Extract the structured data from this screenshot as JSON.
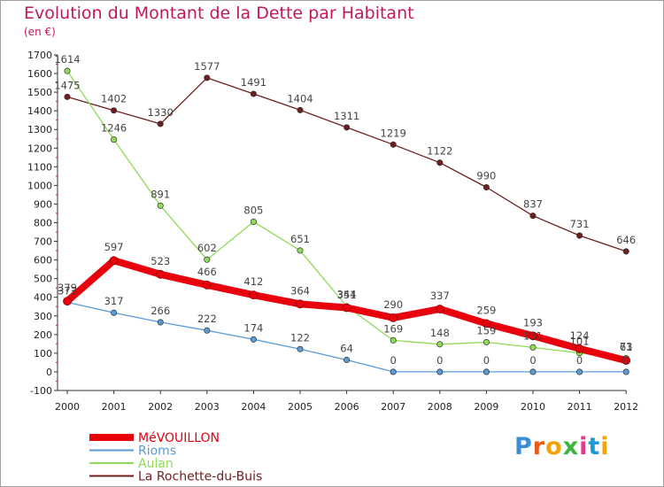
{
  "title": "Evolution du Montant de la Dette par Habitant",
  "unit_label": "(en €)",
  "logo_text": "Proxiti",
  "colors": {
    "title": "#c2185b",
    "MéVOUILLON": "#e8000c",
    "Rioms": "#5b9bd5",
    "Aulan": "#8fda56",
    "La Rochette-du-Buis": "#6e1e1e"
  },
  "chart_data": {
    "type": "line",
    "title": "Evolution du Montant de la Dette par Habitant",
    "ylabel": "(en €)",
    "xlabel": "",
    "ylim": [
      -100,
      1700
    ],
    "yticks": [
      -100,
      0,
      100,
      200,
      300,
      400,
      500,
      600,
      700,
      800,
      900,
      1000,
      1100,
      1200,
      1300,
      1400,
      1500,
      1600,
      1700
    ],
    "categories": [
      "2000",
      "2001",
      "2002",
      "2003",
      "2004",
      "2005",
      "2006",
      "2007",
      "2008",
      "2009",
      "2010",
      "2011",
      "2012"
    ],
    "legend_position": "bottom-left",
    "grid": false,
    "series": [
      {
        "name": "MéVOUILLON",
        "values": [
          379,
          597,
          523,
          466,
          412,
          364,
          344,
          290,
          337,
          259,
          193,
          124,
          61
        ]
      },
      {
        "name": "Rioms",
        "values": [
          373,
          317,
          266,
          222,
          174,
          122,
          64,
          0,
          0,
          0,
          0,
          0,
          0
        ]
      },
      {
        "name": "Aulan",
        "values": [
          1614,
          1246,
          891,
          602,
          805,
          651,
          351,
          169,
          148,
          159,
          131,
          101,
          73
        ]
      },
      {
        "name": "La Rochette-du-Buis",
        "values": [
          1475,
          1402,
          1330,
          1577,
          1491,
          1404,
          1311,
          1219,
          1122,
          990,
          837,
          731,
          646
        ]
      }
    ]
  }
}
